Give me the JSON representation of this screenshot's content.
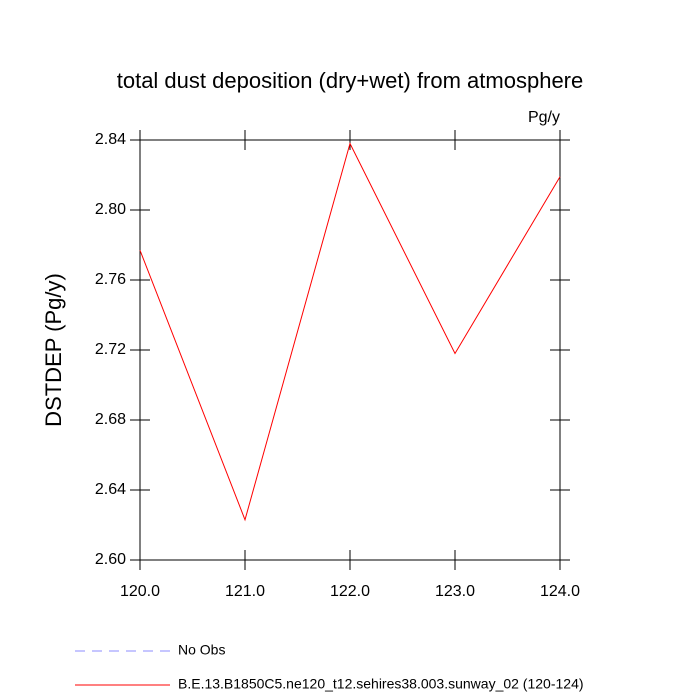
{
  "chart_data": {
    "type": "line",
    "title": "total dust deposition (dry+wet) from atmosphere",
    "units": "Pg/y",
    "y_label": "DSTDEP  (Pg/y)",
    "x": [
      120,
      121,
      122,
      123,
      124
    ],
    "series": [
      {
        "name": "B.E.13.B1850C5.ne120_t12.sehires38.003.sunway_02 (120-124)",
        "color": "#ff0000",
        "values": [
          2.777,
          2.623,
          2.838,
          2.718,
          2.819
        ]
      }
    ],
    "extra_legend": {
      "name": "No Obs",
      "color": "#8c8cff",
      "style": "dashed"
    },
    "xlim": [
      120,
      124
    ],
    "xticks": [
      {
        "value": 120,
        "label": "120.0"
      },
      {
        "value": 121,
        "label": "121.0"
      },
      {
        "value": 122,
        "label": "122.0"
      },
      {
        "value": 123,
        "label": "123.0"
      },
      {
        "value": 124,
        "label": "124.0"
      }
    ],
    "ylim": [
      2.6,
      2.84
    ],
    "yticks": [
      {
        "value": 2.6,
        "label": "2.60"
      },
      2.64,
      2.68,
      2.72,
      2.76,
      {
        "value": 2.8,
        "label": "2.80"
      },
      2.84
    ]
  }
}
